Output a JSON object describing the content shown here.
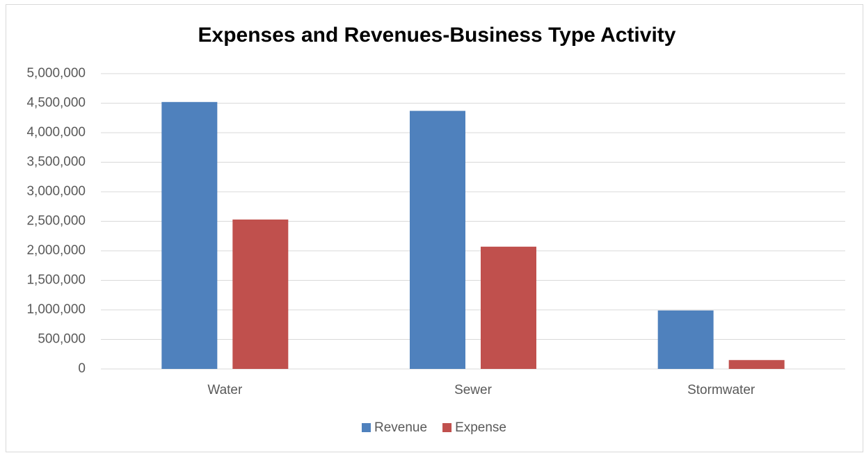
{
  "chart_data": {
    "type": "bar",
    "title": "Expenses and Revenues-Business Type Activity",
    "categories": [
      "Water",
      "Sewer",
      "Stormwater"
    ],
    "series": [
      {
        "name": "Revenue",
        "color": "#4f81bd",
        "values": [
          4520000,
          4370000,
          990000
        ]
      },
      {
        "name": "Expense",
        "color": "#c0504d",
        "values": [
          2530000,
          2070000,
          150000
        ]
      }
    ],
    "ylim": [
      0,
      5000000
    ],
    "yticks": [
      0,
      {
        "value": 500000,
        "label": "500,000"
      },
      {
        "value": 1000000,
        "label": "1,000,000"
      },
      {
        "value": 1500000,
        "label": "1,500,000"
      },
      {
        "value": 2000000,
        "label": "2,000,000"
      },
      {
        "value": 2500000,
        "label": "2,500,000"
      },
      {
        "value": 3000000,
        "label": "3,000,000"
      },
      {
        "value": 3500000,
        "label": "3,500,000"
      },
      {
        "value": 4000000,
        "label": "4,000,000"
      },
      {
        "value": 4500000,
        "label": "4,500,000"
      },
      {
        "value": 5000000,
        "label": "5,000,000"
      }
    ],
    "grid": true,
    "legend": "bottom"
  }
}
